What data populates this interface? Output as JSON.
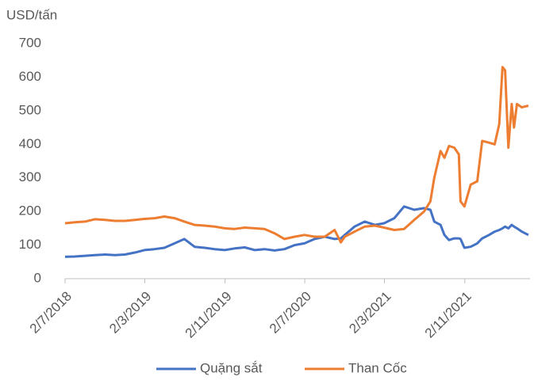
{
  "chart_data": {
    "type": "line",
    "ylabel": "USD/tấn",
    "x": [
      "2018-07-02",
      "2018-08-01",
      "2018-09-01",
      "2018-10-01",
      "2018-11-01",
      "2018-12-01",
      "2019-01-01",
      "2019-02-01",
      "2019-03-01",
      "2019-04-01",
      "2019-05-01",
      "2019-06-01",
      "2019-07-01",
      "2019-08-01",
      "2019-09-01",
      "2019-10-01",
      "2019-11-01",
      "2019-12-01",
      "2020-01-01",
      "2020-02-01",
      "2020-03-01",
      "2020-04-01",
      "2020-05-01",
      "2020-06-01",
      "2020-07-01",
      "2020-08-01",
      "2020-09-01",
      "2020-10-01",
      "2020-10-20",
      "2020-11-01",
      "2020-12-01",
      "2021-01-01",
      "2021-02-01",
      "2021-03-01",
      "2021-04-01",
      "2021-05-01",
      "2021-06-01",
      "2021-07-01",
      "2021-07-20",
      "2021-08-01",
      "2021-08-20",
      "2021-09-01",
      "2021-09-15",
      "2021-10-01",
      "2021-10-15",
      "2021-10-20",
      "2021-11-01",
      "2021-11-20",
      "2021-12-10",
      "2021-12-25",
      "2022-01-15",
      "2022-02-01",
      "2022-02-15",
      "2022-02-25",
      "2022-03-05",
      "2022-03-15",
      "2022-03-25",
      "2022-04-01",
      "2022-04-10",
      "2022-04-25",
      "2022-05-15"
    ],
    "series": [
      {
        "name": "Quặng sắt",
        "color": "#4472c4",
        "values": [
          65,
          66,
          68,
          70,
          72,
          70,
          72,
          78,
          85,
          88,
          92,
          105,
          118,
          95,
          92,
          88,
          85,
          90,
          93,
          85,
          88,
          84,
          88,
          100,
          105,
          118,
          125,
          118,
          120,
          130,
          155,
          170,
          160,
          165,
          180,
          215,
          205,
          210,
          205,
          170,
          160,
          130,
          115,
          120,
          120,
          118,
          92,
          95,
          105,
          120,
          130,
          140,
          145,
          150,
          155,
          150,
          160,
          155,
          150,
          140,
          130
        ]
      },
      {
        "name": "Than Cốc",
        "color": "#ed7d31",
        "values": [
          165,
          168,
          170,
          177,
          175,
          172,
          172,
          175,
          178,
          180,
          185,
          180,
          170,
          160,
          158,
          155,
          150,
          148,
          152,
          150,
          148,
          135,
          118,
          125,
          130,
          125,
          125,
          145,
          108,
          125,
          140,
          155,
          158,
          152,
          145,
          148,
          175,
          200,
          230,
          300,
          380,
          360,
          395,
          390,
          370,
          230,
          215,
          280,
          290,
          410,
          405,
          400,
          460,
          630,
          620,
          390,
          520,
          450,
          520,
          510,
          515
        ]
      }
    ],
    "xlim": [
      "2018-07-02",
      "2022-05-20"
    ],
    "xticks": [
      {
        "value": "2018-07-02",
        "label": "2/7/2018"
      },
      {
        "value": "2019-03-02",
        "label": "2/3/2019"
      },
      {
        "value": "2019-11-02",
        "label": "2/11/2019"
      },
      {
        "value": "2020-07-02",
        "label": "2/7/2020"
      },
      {
        "value": "2021-03-02",
        "label": "2/3/2021"
      },
      {
        "value": "2021-11-02",
        "label": "2/11/2021"
      }
    ],
    "ylim": [
      0,
      700
    ],
    "yticks": [
      0,
      100,
      200,
      300,
      400,
      500,
      600,
      700
    ],
    "grid": false,
    "legend": "bottom"
  }
}
